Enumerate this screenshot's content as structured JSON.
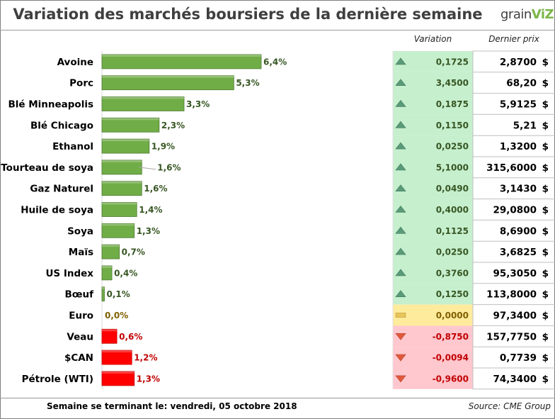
{
  "header": {
    "title": "Variation des marchés boursiers de la dernière semaine",
    "logo_prefix": "grain",
    "logo_suffix": "ViZ"
  },
  "table_headers": {
    "variation": "Variation",
    "price": "Dernier prix"
  },
  "footer": {
    "week_label": "Semaine se terminant le:  vendredi, 05 octobre 2018",
    "source": "Source: CME Group"
  },
  "colors": {
    "up_bar": "#70ad47",
    "down_bar": "#ff0000",
    "up_text": "#375623",
    "down_text": "#c00000",
    "flat_text": "#806000",
    "up_cell": "#c6efce",
    "down_cell": "#ffc7ce",
    "flat_cell": "#ffeb9c"
  },
  "chart_data": {
    "type": "bar",
    "orientation": "horizontal",
    "categories": [
      "Avoine",
      "Porc",
      "Blé Minneapolis",
      "Blé Chicago",
      "Ethanol",
      "Tourteau de soya",
      "Gaz Naturel",
      "Huile de soya",
      "Soya",
      "Maïs",
      "US Index",
      "Bœuf",
      "Euro",
      "Veau",
      "$CAN",
      "Pétrole (WTI)"
    ],
    "values": [
      6.4,
      5.3,
      3.3,
      2.3,
      1.9,
      1.6,
      1.6,
      1.4,
      1.3,
      0.7,
      0.4,
      0.1,
      0.0,
      0.6,
      1.2,
      1.3
    ],
    "value_labels": [
      "6,4%",
      "5,3%",
      "3,3%",
      "2,3%",
      "1,9%",
      "1,6%",
      "1,6%",
      "1,4%",
      "1,3%",
      "0,7%",
      "0,4%",
      "0,1%",
      "0,0%",
      "0,6%",
      "1,2%",
      "1,3%"
    ],
    "direction": [
      "up",
      "up",
      "up",
      "up",
      "up",
      "up",
      "up",
      "up",
      "up",
      "up",
      "up",
      "up",
      "flat",
      "down",
      "down",
      "down"
    ],
    "variation": [
      "0,1725",
      "3,4500",
      "0,1875",
      "0,1150",
      "0,0250",
      "5,1000",
      "0,0490",
      "0,4000",
      "0,1125",
      "0,0250",
      "0,3760",
      "0,1250",
      "0,0000",
      "-0,8750",
      "-0,0094",
      "-0,9600"
    ],
    "last_price": [
      "2,8700",
      "68,20",
      "5,9125",
      "5,21",
      "1,3200",
      "315,6000",
      "3,1430",
      "29,0800",
      "8,6900",
      "3,6825",
      "95,3050",
      "113,8000",
      "97,3400",
      "157,7750",
      "0,7739",
      "74,3400"
    ],
    "currency": "$",
    "xlim": [
      0,
      6.4
    ]
  }
}
